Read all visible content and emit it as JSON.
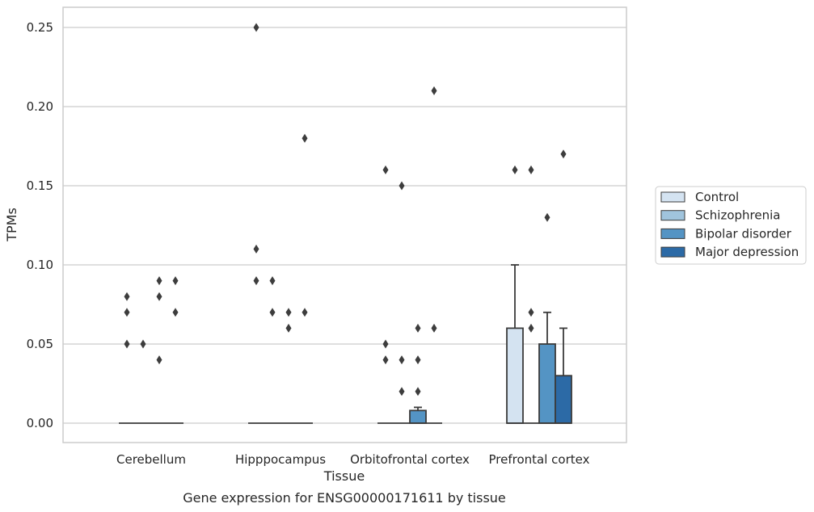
{
  "chart_data": {
    "type": "box",
    "caption": "Gene expression for ENSG00000171611 by tissue",
    "xlabel": "Tissue",
    "ylabel": "TPMs",
    "ylim": [
      -0.012,
      0.262
    ],
    "yticks": [
      0.0,
      0.05,
      0.1,
      0.15,
      0.2,
      0.25
    ],
    "ytick_labels": [
      "0.00",
      "0.05",
      "0.10",
      "0.15",
      "0.20",
      "0.25"
    ],
    "grid": true,
    "legend_position": "right",
    "categories": [
      "Cerebellum",
      "Hipppocampus",
      "Orbitofrontal cortex",
      "Prefrontal cortex"
    ],
    "series": [
      {
        "name": "Control",
        "color": "#d4e3f1",
        "boxes": [
          {
            "q1": 0,
            "median": 0,
            "q3": 0,
            "whisker_low": 0,
            "whisker_high": 0,
            "outliers": [
              0.05,
              0.07,
              0.08
            ]
          },
          {
            "q1": 0,
            "median": 0,
            "q3": 0,
            "whisker_low": 0,
            "whisker_high": 0,
            "outliers": [
              0.09,
              0.11,
              0.25
            ]
          },
          {
            "q1": 0,
            "median": 0,
            "q3": 0,
            "whisker_low": 0,
            "whisker_high": 0,
            "outliers": [
              0.04,
              0.05,
              0.16
            ]
          },
          {
            "q1": 0,
            "median": 0,
            "q3": 0.06,
            "whisker_low": 0,
            "whisker_high": 0.1,
            "outliers": [
              0.16
            ]
          }
        ]
      },
      {
        "name": "Schizophrenia",
        "color": "#a0c4dd",
        "boxes": [
          {
            "q1": 0,
            "median": 0,
            "q3": 0,
            "whisker_low": 0,
            "whisker_high": 0,
            "outliers": [
              0.05
            ]
          },
          {
            "q1": 0,
            "median": 0,
            "q3": 0,
            "whisker_low": 0,
            "whisker_high": 0,
            "outliers": [
              0.07,
              0.09
            ]
          },
          {
            "q1": 0,
            "median": 0,
            "q3": 0,
            "whisker_low": 0,
            "whisker_high": 0,
            "outliers": [
              0.02,
              0.04,
              0.15
            ]
          },
          {
            "q1": 0,
            "median": 0,
            "q3": 0,
            "whisker_low": 0,
            "whisker_high": 0,
            "outliers": [
              0.06,
              0.07,
              0.16
            ]
          }
        ]
      },
      {
        "name": "Bipolar disorder",
        "color": "#5494c4",
        "boxes": [
          {
            "q1": 0,
            "median": 0,
            "q3": 0,
            "whisker_low": 0,
            "whisker_high": 0,
            "outliers": [
              0.04,
              0.08,
              0.09
            ]
          },
          {
            "q1": 0,
            "median": 0,
            "q3": 0,
            "whisker_low": 0,
            "whisker_high": 0,
            "outliers": [
              0.06,
              0.07
            ]
          },
          {
            "q1": 0,
            "median": 0,
            "q3": 0.008,
            "whisker_low": 0,
            "whisker_high": 0.01,
            "outliers": [
              0.02,
              0.04,
              0.06
            ]
          },
          {
            "q1": 0,
            "median": 0,
            "q3": 0.05,
            "whisker_low": 0,
            "whisker_high": 0.07,
            "outliers": [
              0.13
            ]
          }
        ]
      },
      {
        "name": "Major depression",
        "color": "#2c6aa6",
        "boxes": [
          {
            "q1": 0,
            "median": 0,
            "q3": 0,
            "whisker_low": 0,
            "whisker_high": 0,
            "outliers": [
              0.07,
              0.09
            ]
          },
          {
            "q1": 0,
            "median": 0,
            "q3": 0,
            "whisker_low": 0,
            "whisker_high": 0,
            "outliers": [
              0.07,
              0.18
            ]
          },
          {
            "q1": 0,
            "median": 0,
            "q3": 0,
            "whisker_low": 0,
            "whisker_high": 0,
            "outliers": [
              0.06,
              0.21
            ]
          },
          {
            "q1": 0,
            "median": 0,
            "q3": 0.03,
            "whisker_low": 0,
            "whisker_high": 0.06,
            "outliers": [
              0.17
            ]
          }
        ]
      }
    ]
  }
}
